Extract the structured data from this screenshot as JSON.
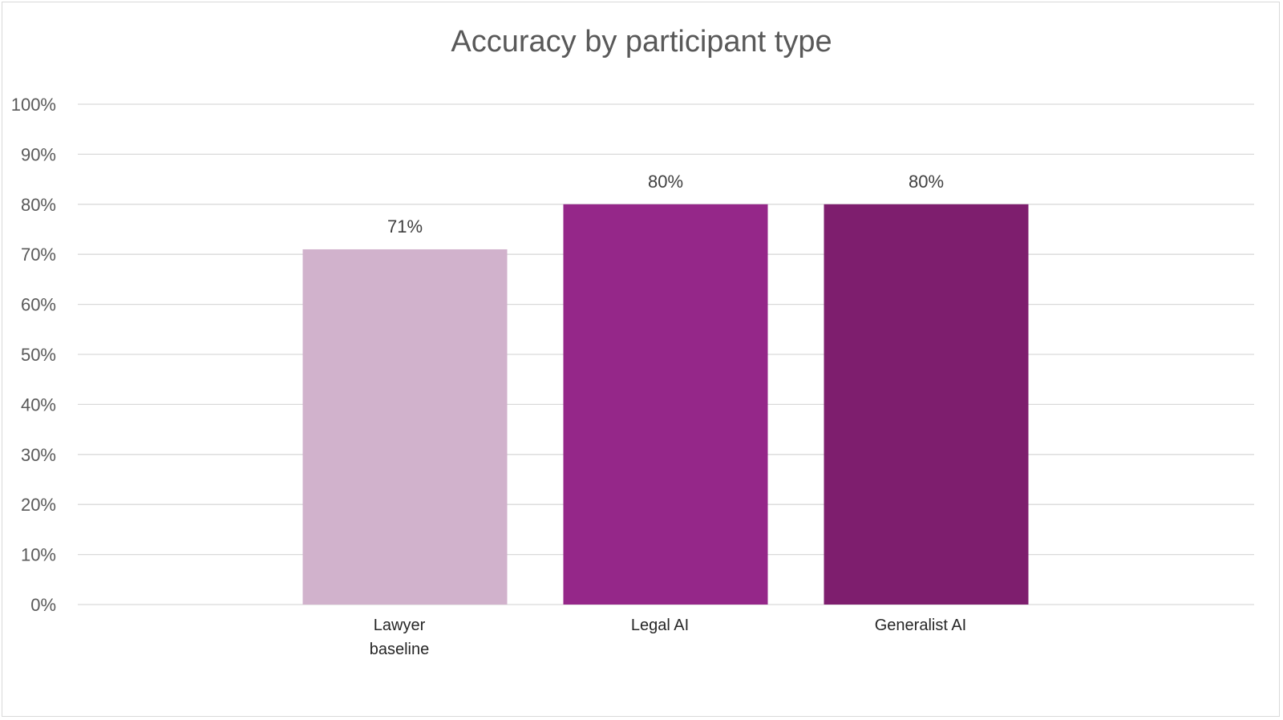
{
  "chart_data": {
    "type": "bar",
    "title": "Accuracy by participant type",
    "categories": [
      "Lawyer baseline",
      "Legal AI",
      "Generalist AI"
    ],
    "category_lines": [
      [
        "Lawyer",
        "baseline"
      ],
      [
        "Legal AI"
      ],
      [
        "Generalist AI"
      ]
    ],
    "values": [
      71,
      80,
      80
    ],
    "data_labels": [
      "71%",
      "80%",
      "80%"
    ],
    "colors": [
      "#d1b2cc",
      "#952789",
      "#7e1e6e"
    ],
    "ylim": [
      0,
      100
    ],
    "yticks": [
      0,
      10,
      20,
      30,
      40,
      50,
      60,
      70,
      80,
      90,
      100
    ],
    "ytick_labels": [
      "0%",
      "10%",
      "20%",
      "30%",
      "40%",
      "50%",
      "60%",
      "70%",
      "80%",
      "90%",
      "100%"
    ],
    "xlabel": "",
    "ylabel": "",
    "grid": true,
    "legend": "none"
  }
}
